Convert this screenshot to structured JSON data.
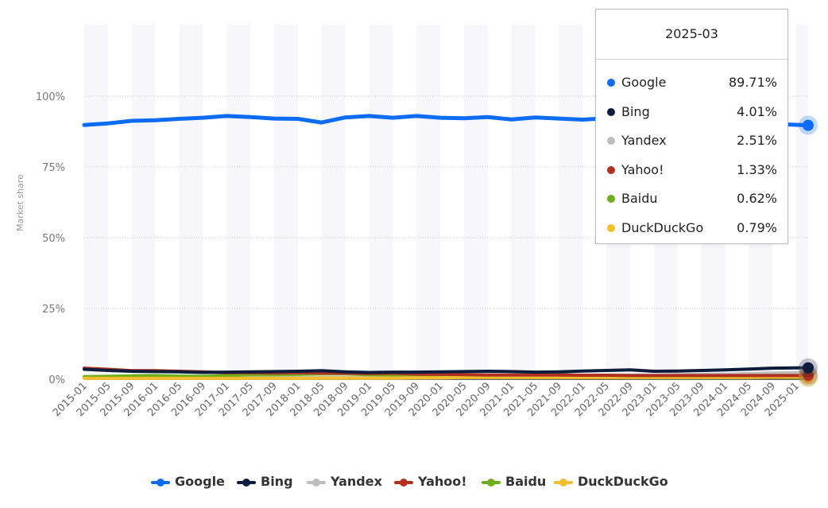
{
  "chart_data": {
    "type": "line",
    "ylabel": "Market share",
    "ylim": [
      0,
      100
    ],
    "y_ticks": [
      "0%",
      "25%",
      "50%",
      "75%",
      "100%"
    ],
    "x_tick_labels": [
      "2015-01",
      "2015-05",
      "2015-09",
      "2016-01",
      "2016-05",
      "2016-09",
      "2017-01",
      "2017-05",
      "2017-09",
      "2018-01",
      "2018-05",
      "2018-09",
      "2019-01",
      "2019-05",
      "2019-09",
      "2020-01",
      "2020-05",
      "2020-09",
      "2021-01",
      "2021-05",
      "2021-09",
      "2022-01",
      "2022-05",
      "2022-09",
      "2023-01",
      "2023-05",
      "2023-09",
      "2024-01",
      "2024-05",
      "2024-09",
      "2025-01"
    ],
    "x": [
      "2015-01",
      "2015-05",
      "2015-09",
      "2016-01",
      "2016-05",
      "2016-09",
      "2017-01",
      "2017-05",
      "2017-09",
      "2018-01",
      "2018-05",
      "2018-09",
      "2019-01",
      "2019-05",
      "2019-09",
      "2020-01",
      "2020-05",
      "2020-09",
      "2021-01",
      "2021-05",
      "2021-09",
      "2022-01",
      "2022-05",
      "2022-09",
      "2023-01",
      "2023-05",
      "2023-09",
      "2024-01",
      "2024-05",
      "2024-09",
      "2025-01",
      "2025-03"
    ],
    "grid": true,
    "legend_position": "bottom",
    "series": [
      {
        "name": "Google",
        "color": "#0d6cf5",
        "values": [
          89.8,
          90.4,
          91.3,
          91.5,
          92.0,
          92.4,
          93.0,
          92.6,
          92.1,
          92.0,
          90.7,
          92.5,
          93.0,
          92.4,
          93.0,
          92.4,
          92.2,
          92.6,
          91.8,
          92.5,
          92.1,
          91.7,
          92.2,
          92.0,
          91.5,
          91.2,
          91.0,
          90.8,
          90.6,
          90.2,
          89.9,
          89.71
        ]
      },
      {
        "name": "Bing",
        "color": "#0b1c3d",
        "values": [
          3.5,
          3.1,
          2.8,
          2.7,
          2.6,
          2.4,
          2.5,
          2.6,
          2.7,
          2.8,
          3.0,
          2.6,
          2.4,
          2.5,
          2.5,
          2.6,
          2.7,
          2.8,
          2.7,
          2.5,
          2.6,
          2.9,
          3.1,
          3.3,
          2.8,
          2.9,
          3.1,
          3.3,
          3.6,
          3.9,
          4.0,
          4.01
        ]
      },
      {
        "name": "Yandex",
        "color": "#bdbdbd",
        "values": [
          0.6,
          0.6,
          0.6,
          0.6,
          0.6,
          0.6,
          0.6,
          0.6,
          0.6,
          0.6,
          0.6,
          0.6,
          0.6,
          0.6,
          0.7,
          0.8,
          0.9,
          1.0,
          1.0,
          1.1,
          1.2,
          1.3,
          1.4,
          1.5,
          1.5,
          1.6,
          1.7,
          1.8,
          2.0,
          2.2,
          2.4,
          2.51
        ]
      },
      {
        "name": "Yahoo!",
        "color": "#b03120",
        "values": [
          3.9,
          3.5,
          3.0,
          3.0,
          2.8,
          2.6,
          2.3,
          2.3,
          2.2,
          2.3,
          2.2,
          2.1,
          2.0,
          2.1,
          1.8,
          1.7,
          1.6,
          1.5,
          1.5,
          1.5,
          1.5,
          1.4,
          1.4,
          1.3,
          1.3,
          1.3,
          1.3,
          1.3,
          1.3,
          1.3,
          1.3,
          1.33
        ]
      },
      {
        "name": "Baidu",
        "color": "#6fae1d",
        "values": [
          0.9,
          1.0,
          1.2,
          1.3,
          1.1,
          1.0,
          1.3,
          1.6,
          1.6,
          1.7,
          1.9,
          1.9,
          1.6,
          1.5,
          1.4,
          1.5,
          1.3,
          1.2,
          1.3,
          1.4,
          1.6,
          1.3,
          1.1,
          0.9,
          0.9,
          0.9,
          0.8,
          0.8,
          0.7,
          0.7,
          0.6,
          0.62
        ]
      },
      {
        "name": "DuckDuckGo",
        "color": "#f3bd2d",
        "values": [
          0.3,
          0.3,
          0.3,
          0.3,
          0.3,
          0.3,
          0.3,
          0.3,
          0.3,
          0.3,
          0.4,
          0.4,
          0.4,
          0.4,
          0.5,
          0.5,
          0.6,
          0.6,
          0.6,
          0.6,
          0.6,
          0.6,
          0.6,
          0.6,
          0.6,
          0.6,
          0.6,
          0.6,
          0.6,
          0.7,
          0.8,
          0.79
        ]
      }
    ]
  },
  "tooltip": {
    "title": "2025-03",
    "rows": [
      {
        "name": "Google",
        "value": "89.71%",
        "color": "#0d6cf5"
      },
      {
        "name": "Bing",
        "value": "4.01%",
        "color": "#0b1c3d"
      },
      {
        "name": "Yandex",
        "value": "2.51%",
        "color": "#bdbdbd"
      },
      {
        "name": "Yahoo!",
        "value": "1.33%",
        "color": "#b03120"
      },
      {
        "name": "Baidu",
        "value": "0.62%",
        "color": "#6fae1d"
      },
      {
        "name": "DuckDuckGo",
        "value": "0.79%",
        "color": "#f3bd2d"
      }
    ]
  },
  "legend": [
    {
      "name": "Google",
      "color": "#0d6cf5"
    },
    {
      "name": "Bing",
      "color": "#0b1c3d"
    },
    {
      "name": "Yandex",
      "color": "#bdbdbd"
    },
    {
      "name": "Yahoo!",
      "color": "#b03120"
    },
    {
      "name": "Baidu",
      "color": "#6fae1d"
    },
    {
      "name": "DuckDuckGo",
      "color": "#f3bd2d"
    }
  ]
}
